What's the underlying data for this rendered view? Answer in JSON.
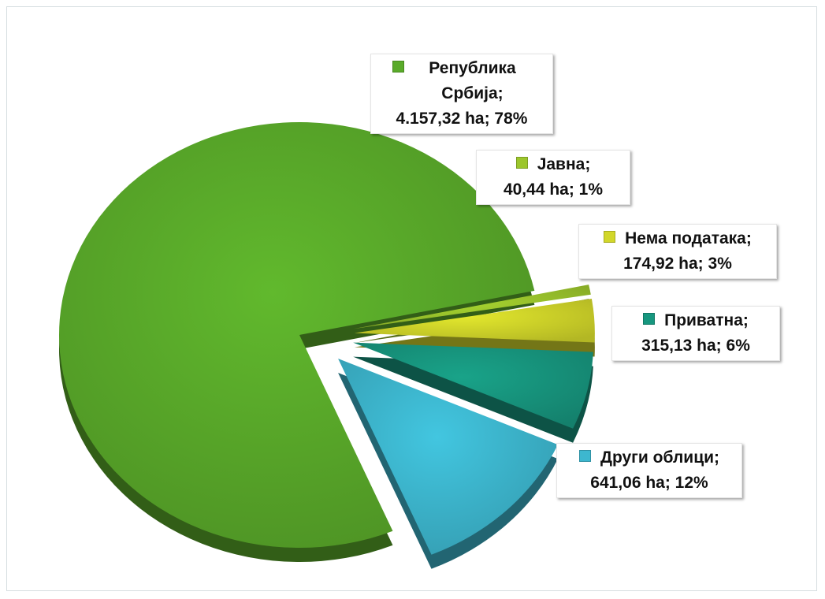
{
  "chart_data": {
    "type": "pie",
    "categories": [
      "Република Србија;",
      "Јавна;",
      "Нема података;",
      "Приватна;",
      "Други облици;"
    ],
    "values": [
      4157.32,
      40.44,
      174.92,
      315.13,
      641.06
    ],
    "value_labels": [
      "4.157,32 ha; 78%",
      "40,44 ha; 1%",
      "174,92 ha; 3%",
      "315,13 ha; 6%",
      "641,06 ha; 12%"
    ],
    "colors": [
      "#5aab2a",
      "#9cc62c",
      "#d2d72a",
      "#17977f",
      "#3db7cf"
    ]
  }
}
